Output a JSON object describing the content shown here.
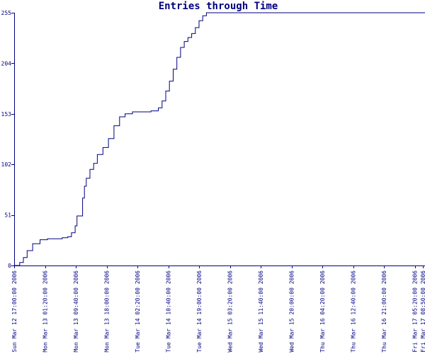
{
  "chart_data": {
    "type": "line",
    "title": "Entries through Time",
    "xlabel": "",
    "ylabel": "",
    "grid": false,
    "colors": {
      "line": "#000080",
      "axis": "#000080",
      "text": "#000080",
      "background": "#ffffff"
    },
    "y_ticks": [
      0,
      51,
      102,
      153,
      204,
      255
    ],
    "ylim": [
      0,
      255
    ],
    "x_ticks": [
      "Sun Mar 12 17:00:00 2006",
      "Mon Mar 13 01:20:00 2006",
      "Mon Mar 13 09:40:00 2006",
      "Mon Mar 13 18:00:00 2006",
      "Tue Mar 14 02:20:00 2006",
      "Tue Mar 14 10:40:00 2006",
      "Tue Mar 14 19:00:00 2006",
      "Wed Mar 15 03:20:00 2006",
      "Wed Mar 15 11:40:00 2006",
      "Wed Mar 15 20:00:00 2006",
      "Thu Mar 16 04:20:00 2006",
      "Thu Mar 16 12:40:00 2006",
      "Thu Mar 16 21:00:00 2006",
      "Fri Mar 17 05:20:00 2006",
      "Fri Mar 17 08:50:00 2006"
    ],
    "series": [
      {
        "x": [
          "2006-03-12T17:00",
          "2006-03-12T18:30",
          "2006-03-12T19:30",
          "2006-03-12T20:30",
          "2006-03-12T22:00",
          "2006-03-13T00:00",
          "2006-03-13T02:00",
          "2006-03-13T04:00",
          "2006-03-13T06:00",
          "2006-03-13T07:30",
          "2006-03-13T08:30",
          "2006-03-13T09:30",
          "2006-03-13T10:00",
          "2006-03-13T11:30",
          "2006-03-13T12:00",
          "2006-03-13T12:30",
          "2006-03-13T13:30",
          "2006-03-13T14:30",
          "2006-03-13T15:30",
          "2006-03-13T17:00",
          "2006-03-13T18:30",
          "2006-03-13T20:00",
          "2006-03-13T21:30",
          "2006-03-13T23:00",
          "2006-03-14T01:00",
          "2006-03-14T02:00",
          "2006-03-14T04:00",
          "2006-03-14T06:00",
          "2006-03-14T08:00",
          "2006-03-14T09:00",
          "2006-03-14T10:00",
          "2006-03-14T11:00",
          "2006-03-14T12:00",
          "2006-03-14T13:00",
          "2006-03-14T14:00",
          "2006-03-14T15:00",
          "2006-03-14T16:00",
          "2006-03-14T17:00",
          "2006-03-14T18:00",
          "2006-03-14T19:00",
          "2006-03-14T20:00",
          "2006-03-14T21:00",
          "2006-03-14T22:00",
          "2006-03-15T00:00",
          "2006-03-16T00:00",
          "2006-03-17T08:50"
        ],
        "y": [
          0,
          3,
          8,
          15,
          22,
          26,
          27,
          27,
          28,
          29,
          33,
          40,
          50,
          68,
          80,
          88,
          97,
          103,
          112,
          119,
          128,
          141,
          150,
          153,
          155,
          155,
          155,
          156,
          159,
          166,
          176,
          186,
          198,
          210,
          220,
          226,
          230,
          234,
          240,
          247,
          252,
          255,
          255,
          255,
          255,
          255
        ]
      }
    ]
  }
}
